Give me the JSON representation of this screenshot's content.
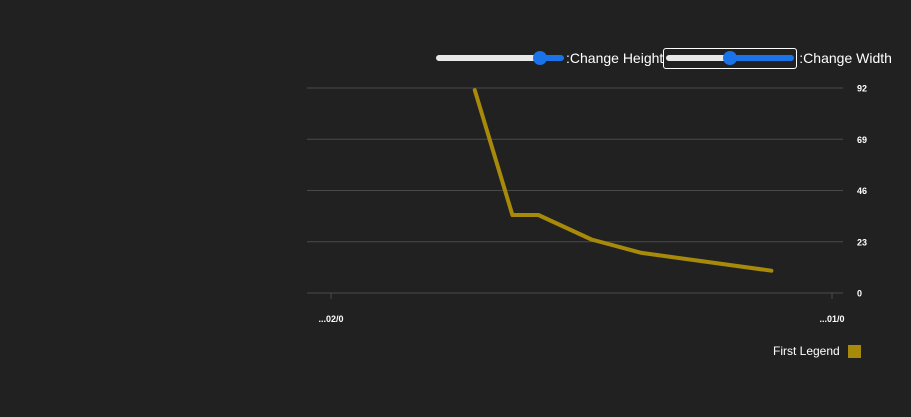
{
  "controls": {
    "height_label": ":Change Height",
    "width_label": ":Change Width",
    "height_value": 0.85,
    "width_value": 0.5
  },
  "colors": {
    "background": "#212121",
    "series": "#a88a0a",
    "grid": "#4a4a4a",
    "slider_fill": "#1a73e8",
    "slider_track": "#e8e8e8"
  },
  "chart_data": {
    "type": "line",
    "title": "",
    "xlabel": "",
    "ylabel": "",
    "y_ticks": [
      "92",
      "69",
      "46",
      "23",
      "0"
    ],
    "x_ticks": [
      "...02/0",
      "...01/0"
    ],
    "ylim": [
      0,
      92
    ],
    "xlim": [
      0,
      100
    ],
    "grid": true,
    "legend_position": "bottom-right",
    "series": [
      {
        "name": "First Legend",
        "x": [
          28.7,
          36.2,
          41.4,
          52.0,
          62.0,
          87.9
        ],
        "y": [
          91,
          35,
          35,
          24,
          18,
          10
        ]
      }
    ]
  }
}
